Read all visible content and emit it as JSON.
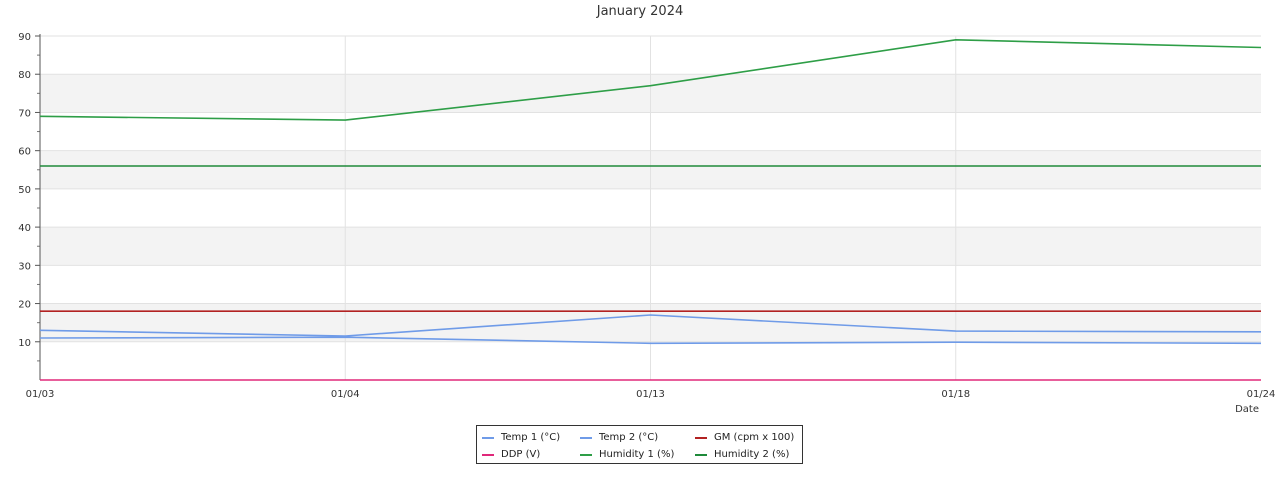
{
  "chart_data": {
    "type": "line",
    "title": "January 2024",
    "xlabel": "Date",
    "ylabel": "",
    "x": [
      "01/03",
      "01/04",
      "01/13",
      "01/18",
      "01/24"
    ],
    "ylim": [
      0,
      90
    ],
    "yticks": [
      10,
      20,
      30,
      40,
      50,
      60,
      70,
      80,
      90
    ],
    "grid": true,
    "banded_background": true,
    "legend_position": "bottom-center",
    "series": [
      {
        "name": "Temp 1 (°C)",
        "color": "#6f9be8",
        "values": [
          13.0,
          11.5,
          17.0,
          12.8,
          12.6
        ]
      },
      {
        "name": "Temp 2 (°C)",
        "color": "#6f9be8",
        "values": [
          11.0,
          11.2,
          9.6,
          9.9,
          9.6
        ]
      },
      {
        "name": "GM (cpm x 100)",
        "color": "#b22222",
        "values": [
          18.0,
          18.0,
          18.0,
          18.0,
          18.0
        ]
      },
      {
        "name": "DDP (V)",
        "color": "#e0287a",
        "values": [
          0,
          0,
          0,
          0,
          0
        ]
      },
      {
        "name": "Humidity 1 (%)",
        "color": "#2e9e47",
        "values": [
          69.0,
          68.0,
          77.0,
          89.0,
          87.0
        ]
      },
      {
        "name": "Humidity 2 (%)",
        "color": "#1f8a3a",
        "values": [
          56.0,
          56.0,
          56.0,
          56.0,
          56.0
        ]
      }
    ]
  }
}
